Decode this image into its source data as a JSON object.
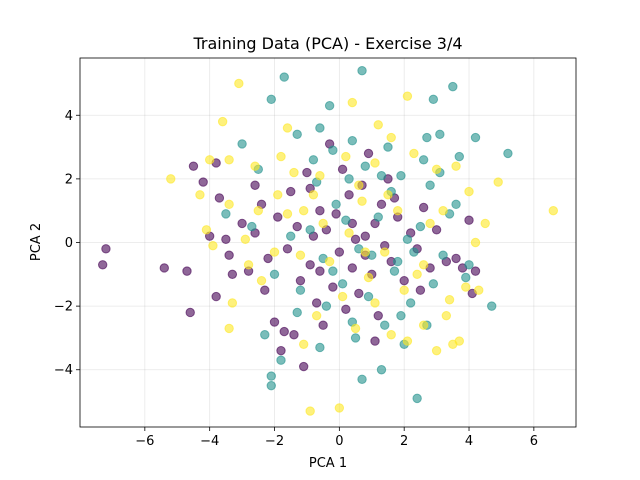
{
  "chart_data": {
    "type": "scatter",
    "title": "Training Data (PCA) - Exercise 3/4",
    "xlabel": "PCA 1",
    "ylabel": "PCA 2",
    "xlim": [
      -8.0,
      7.3
    ],
    "ylim": [
      -5.8,
      5.8
    ],
    "x_ticks": [
      -6,
      -4,
      -2,
      0,
      2,
      4,
      6
    ],
    "y_ticks": [
      -4,
      -2,
      0,
      2,
      4
    ],
    "x_tick_labels": [
      "−6",
      "−4",
      "−2",
      "0",
      "2",
      "4",
      "6"
    ],
    "y_tick_labels": [
      "−4",
      "−2",
      "0",
      "2",
      "4"
    ],
    "grid": true,
    "legend": "none",
    "point_alpha": 0.6,
    "colors": {
      "class_0": "#440154",
      "class_1": "#21918c",
      "class_2": "#fde725"
    },
    "series": [
      {
        "color": "#440154",
        "points": [
          [
            -7.2,
            -0.2
          ],
          [
            -7.3,
            -0.7
          ],
          [
            -5.4,
            -0.8
          ],
          [
            -4.7,
            -0.9
          ],
          [
            -4.6,
            -2.2
          ],
          [
            -4.5,
            2.4
          ],
          [
            -4.2,
            1.9
          ],
          [
            -4.0,
            0.2
          ],
          [
            -3.8,
            2.5
          ],
          [
            -3.7,
            1.4
          ],
          [
            -3.5,
            0.1
          ],
          [
            -3.4,
            -0.4
          ],
          [
            -3.3,
            -1.0
          ],
          [
            -3.0,
            0.6
          ],
          [
            -2.8,
            -0.9
          ],
          [
            -2.6,
            0.3
          ],
          [
            -2.4,
            1.2
          ],
          [
            -2.3,
            -1.5
          ],
          [
            -2.2,
            -0.5
          ],
          [
            -2.0,
            -2.5
          ],
          [
            -1.9,
            0.8
          ],
          [
            -1.8,
            -3.4
          ],
          [
            -1.6,
            -0.2
          ],
          [
            -1.5,
            1.6
          ],
          [
            -1.4,
            -2.9
          ],
          [
            -1.3,
            0.5
          ],
          [
            -1.2,
            -1.2
          ],
          [
            -1.1,
            -3.9
          ],
          [
            -1.0,
            2.2
          ],
          [
            -0.9,
            -0.7
          ],
          [
            -0.8,
            0.2
          ],
          [
            -0.7,
            -1.9
          ],
          [
            -0.6,
            1.0
          ],
          [
            -0.5,
            -2.6
          ],
          [
            -0.4,
            0.4
          ],
          [
            -0.3,
            3.1
          ],
          [
            -0.2,
            -1.4
          ],
          [
            -0.1,
            0.9
          ],
          [
            0.0,
            -0.3
          ],
          [
            0.1,
            2.3
          ],
          [
            0.2,
            -2.1
          ],
          [
            0.3,
            1.5
          ],
          [
            0.4,
            -0.8
          ],
          [
            0.5,
            0.1
          ],
          [
            0.6,
            -1.6
          ],
          [
            0.7,
            1.8
          ],
          [
            0.8,
            -0.4
          ],
          [
            0.9,
            2.8
          ],
          [
            1.0,
            -1.0
          ],
          [
            1.1,
            0.6
          ],
          [
            1.2,
            -2.3
          ],
          [
            1.3,
            1.2
          ],
          [
            1.4,
            -0.1
          ],
          [
            1.5,
            2.0
          ],
          [
            1.6,
            -0.6
          ],
          [
            1.8,
            0.8
          ],
          [
            2.0,
            -1.2
          ],
          [
            2.2,
            0.3
          ],
          [
            2.4,
            -0.2
          ],
          [
            2.6,
            1.1
          ],
          [
            2.8,
            -0.8
          ],
          [
            3.0,
            0.4
          ],
          [
            3.3,
            -0.6
          ],
          [
            3.6,
            -0.5
          ],
          [
            3.8,
            -0.8
          ],
          [
            4.1,
            -1.6
          ],
          [
            4.2,
            -0.9
          ],
          [
            4.0,
            0.7
          ],
          [
            -2.6,
            1.8
          ],
          [
            1.7,
            1.4
          ],
          [
            -0.6,
            -0.9
          ],
          [
            0.4,
            0.6
          ],
          [
            -1.7,
            -2.8
          ],
          [
            2.5,
            -1.5
          ],
          [
            -3.8,
            -1.7
          ],
          [
            1.1,
            -3.1
          ],
          [
            -0.9,
            1.7
          ],
          [
            0.8,
            0.2
          ]
        ]
      },
      {
        "color": "#21918c",
        "points": [
          [
            -1.7,
            5.2
          ],
          [
            0.7,
            5.4
          ],
          [
            -2.1,
            4.5
          ],
          [
            -0.3,
            4.3
          ],
          [
            2.9,
            4.5
          ],
          [
            3.5,
            4.9
          ],
          [
            -3.0,
            3.1
          ],
          [
            -1.3,
            3.4
          ],
          [
            -0.6,
            3.6
          ],
          [
            0.4,
            3.2
          ],
          [
            1.5,
            3.0
          ],
          [
            2.7,
            3.3
          ],
          [
            3.1,
            3.4
          ],
          [
            4.2,
            3.3
          ],
          [
            5.2,
            2.8
          ],
          [
            -3.5,
            0.9
          ],
          [
            -2.5,
            2.3
          ],
          [
            -0.8,
            2.6
          ],
          [
            0.3,
            2.0
          ],
          [
            1.9,
            2.1
          ],
          [
            3.7,
            2.7
          ],
          [
            -1.8,
            -3.7
          ],
          [
            -2.1,
            -4.2
          ],
          [
            -2.1,
            -4.5
          ],
          [
            0.7,
            -4.3
          ],
          [
            1.3,
            -4.0
          ],
          [
            2.4,
            -4.9
          ],
          [
            -2.3,
            -2.9
          ],
          [
            -0.6,
            -3.3
          ],
          [
            0.5,
            -3.0
          ],
          [
            2.0,
            -3.2
          ],
          [
            4.7,
            -2.0
          ],
          [
            -1.2,
            -1.5
          ],
          [
            -0.2,
            -0.9
          ],
          [
            0.6,
            -0.2
          ],
          [
            1.2,
            0.8
          ],
          [
            1.8,
            -0.6
          ],
          [
            2.5,
            0.5
          ],
          [
            3.2,
            -0.4
          ],
          [
            3.9,
            -1.1
          ],
          [
            -0.9,
            0.4
          ],
          [
            -0.1,
            1.2
          ],
          [
            0.9,
            -1.7
          ],
          [
            1.6,
            1.6
          ],
          [
            2.2,
            -1.9
          ],
          [
            2.8,
            1.8
          ],
          [
            3.4,
            0.9
          ],
          [
            4.0,
            -0.7
          ],
          [
            -1.5,
            0.2
          ],
          [
            -0.4,
            -2.0
          ],
          [
            0.2,
            0.7
          ],
          [
            1.0,
            -0.4
          ],
          [
            1.4,
            -2.6
          ],
          [
            2.1,
            0.1
          ],
          [
            2.9,
            -1.3
          ],
          [
            3.6,
            1.2
          ],
          [
            -2.0,
            -1.0
          ],
          [
            -0.7,
            1.9
          ],
          [
            0.1,
            -1.3
          ],
          [
            0.8,
            2.4
          ],
          [
            1.7,
            -0.9
          ],
          [
            2.6,
            2.6
          ],
          [
            -1.3,
            -2.2
          ],
          [
            -0.5,
            -0.5
          ],
          [
            0.4,
            -2.5
          ],
          [
            1.3,
            2.1
          ],
          [
            2.3,
            -0.3
          ],
          [
            3.1,
            2.2
          ],
          [
            -2.7,
            0.5
          ],
          [
            -0.2,
            2.9
          ],
          [
            1.9,
            -2.3
          ],
          [
            2.7,
            -2.6
          ]
        ]
      },
      {
        "color": "#fde725",
        "points": [
          [
            -3.1,
            5.0
          ],
          [
            0.4,
            4.4
          ],
          [
            2.1,
            4.6
          ],
          [
            -3.6,
            3.8
          ],
          [
            -1.6,
            3.6
          ],
          [
            1.2,
            3.7
          ],
          [
            1.6,
            3.3
          ],
          [
            4.9,
            1.9
          ],
          [
            6.6,
            1.0
          ],
          [
            -5.2,
            2.0
          ],
          [
            -4.0,
            2.6
          ],
          [
            -4.3,
            1.5
          ],
          [
            -4.1,
            0.4
          ],
          [
            -3.4,
            1.2
          ],
          [
            -3.4,
            2.6
          ],
          [
            -2.6,
            2.4
          ],
          [
            -2.5,
            1.0
          ],
          [
            -1.8,
            2.7
          ],
          [
            -1.4,
            2.2
          ],
          [
            -1.1,
            1.0
          ],
          [
            -0.6,
            2.1
          ],
          [
            0.2,
            2.7
          ],
          [
            0.6,
            1.8
          ],
          [
            1.1,
            2.5
          ],
          [
            2.3,
            2.8
          ],
          [
            3.0,
            2.3
          ],
          [
            3.6,
            2.4
          ],
          [
            4.0,
            1.6
          ],
          [
            4.5,
            0.6
          ],
          [
            3.4,
            -1.8
          ],
          [
            3.7,
            -3.1
          ],
          [
            3.5,
            -3.2
          ],
          [
            3.0,
            -3.4
          ],
          [
            2.6,
            -2.6
          ],
          [
            2.1,
            -3.1
          ],
          [
            1.6,
            -2.9
          ],
          [
            0.9,
            -1.1
          ],
          [
            0.5,
            -2.7
          ],
          [
            -0.9,
            -5.3
          ],
          [
            0.0,
            -5.2
          ],
          [
            -1.1,
            -3.2
          ],
          [
            -3.4,
            -2.7
          ],
          [
            -3.3,
            -1.9
          ],
          [
            -2.9,
            0.1
          ],
          [
            -2.0,
            -0.3
          ],
          [
            -1.6,
            0.9
          ],
          [
            -0.8,
            1.5
          ],
          [
            -0.3,
            -0.6
          ],
          [
            0.3,
            0.3
          ],
          [
            0.7,
            1.3
          ],
          [
            1.4,
            -0.3
          ],
          [
            1.8,
            1.0
          ],
          [
            2.4,
            -1.0
          ],
          [
            2.8,
            0.6
          ],
          [
            3.3,
            -2.3
          ],
          [
            3.9,
            -1.4
          ],
          [
            4.2,
            0.0
          ],
          [
            -2.4,
            -1.2
          ],
          [
            -1.9,
            1.5
          ],
          [
            -1.2,
            -0.4
          ],
          [
            -0.5,
            0.6
          ],
          [
            0.1,
            -1.7
          ],
          [
            0.8,
            -0.3
          ],
          [
            1.5,
            1.5
          ],
          [
            2.0,
            -1.5
          ],
          [
            2.6,
            -0.7
          ],
          [
            3.2,
            1.0
          ],
          [
            -2.8,
            -0.7
          ],
          [
            -0.7,
            -2.3
          ],
          [
            1.1,
            -1.9
          ],
          [
            4.3,
            -1.5
          ],
          [
            -3.9,
            -0.1
          ]
        ]
      }
    ]
  }
}
